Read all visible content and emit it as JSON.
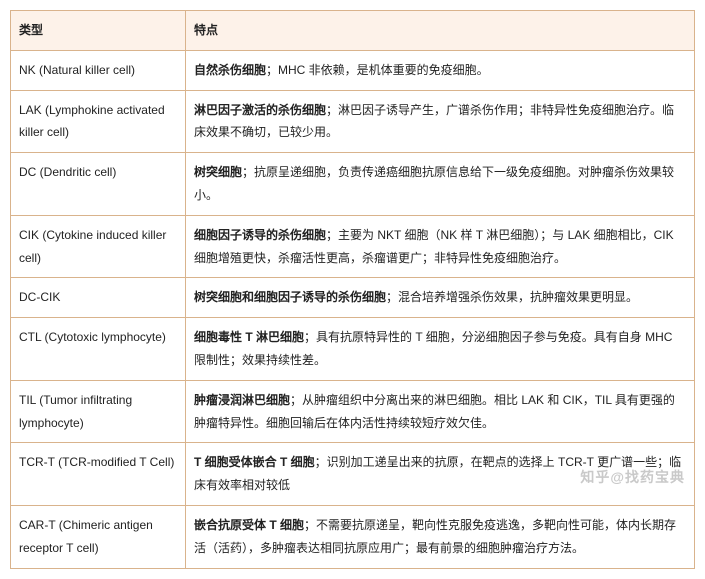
{
  "headers": {
    "type": "类型",
    "feature": "特点"
  },
  "rows": [
    {
      "type": "NK (Natural killer cell)",
      "bold": "自然杀伤细胞",
      "rest": "；MHC 非依赖，是机体重要的免疫细胞。"
    },
    {
      "type": "LAK (Lymphokine activated killer cell)",
      "bold": "淋巴因子激活的杀伤细胞",
      "rest": "；淋巴因子诱导产生，广谱杀伤作用；非特异性免疫细胞治疗。临床效果不确切，已较少用。"
    },
    {
      "type": "DC (Dendritic cell)",
      "bold": "树突细胞",
      "rest": "；抗原呈递细胞，负责传递癌细胞抗原信息给下一级免疫细胞。对肿瘤杀伤效果较小。"
    },
    {
      "type": "CIK (Cytokine induced killer cell)",
      "bold": "细胞因子诱导的杀伤细胞",
      "rest": "；主要为 NKT 细胞（NK 样 T 淋巴细胞）；与 LAK 细胞相比，CIK 细胞增殖更快，杀瘤活性更高，杀瘤谱更广；非特异性免疫细胞治疗。"
    },
    {
      "type": "DC-CIK",
      "bold": "树突细胞和细胞因子诱导的杀伤细胞",
      "rest": "；混合培养增强杀伤效果，抗肿瘤效果更明显。"
    },
    {
      "type": "CTL (Cytotoxic lymphocyte)",
      "bold": "细胞毒性 T 淋巴细胞",
      "rest": "；具有抗原特异性的 T 细胞，分泌细胞因子参与免疫。具有自身 MHC 限制性；效果持续性差。"
    },
    {
      "type": "TIL (Tumor infiltrating lymphocyte)",
      "bold": "肿瘤浸润淋巴细胞",
      "rest": "；从肿瘤组织中分离出来的淋巴细胞。相比 LAK 和 CIK，TIL 具有更强的肿瘤特异性。细胞回输后在体内活性持续较短疗效欠佳。"
    },
    {
      "type": "TCR-T (TCR-modified T Cell)",
      "bold": "T 细胞受体嵌合 T 细胞",
      "rest": "；识别加工递呈出来的抗原，在靶点的选择上 TCR-T 更广谱一些；临床有效率相对较低"
    },
    {
      "type": "CAR-T (Chimeric antigen receptor T cell)",
      "bold": "嵌合抗原受体 T 细胞",
      "rest": "；不需要抗原递呈，靶向性克服免疫逃逸，多靶向性可能，体内长期存活（活药），多肿瘤表达相同抗原应用广；最有前景的细胞肿瘤治疗方法。"
    }
  ],
  "watermark": "知乎@找药宝典",
  "colors": {
    "header_bg": "#fdf2e9",
    "border": "#d9b38c"
  }
}
